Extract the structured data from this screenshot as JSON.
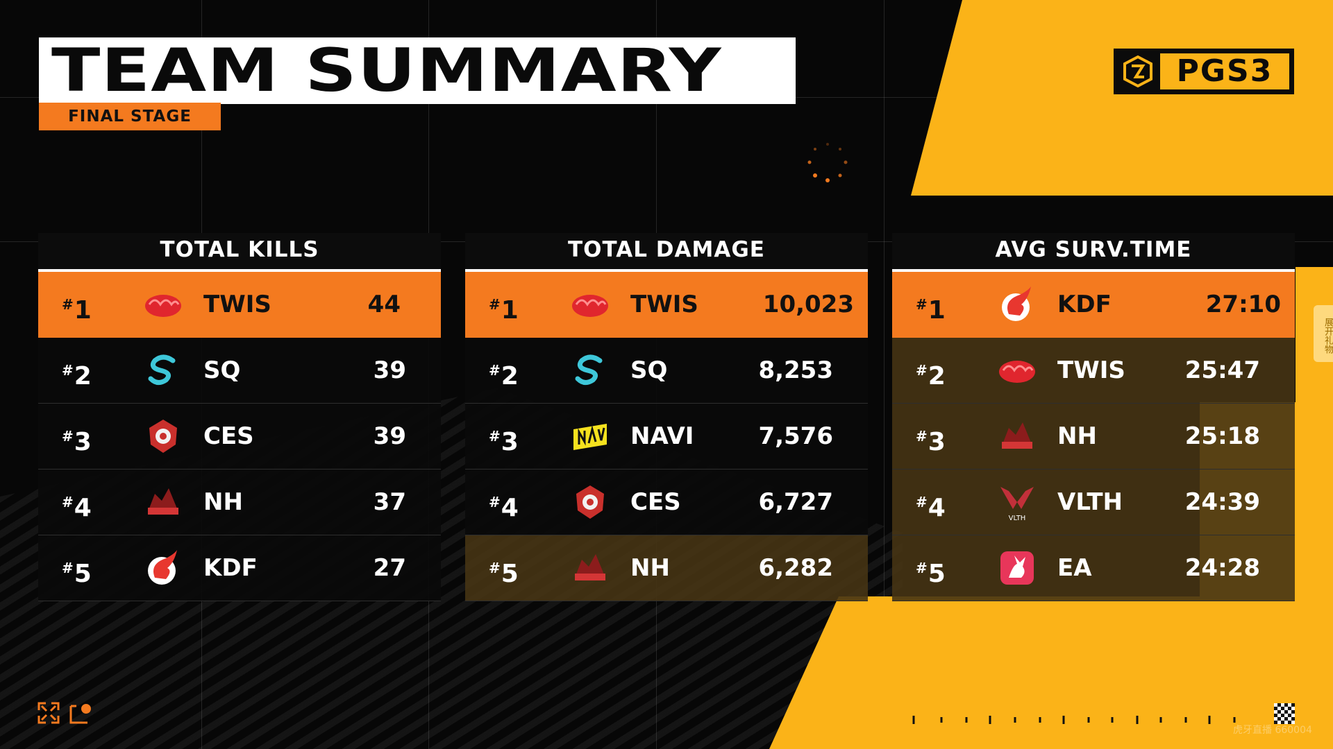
{
  "header": {
    "title": "TEAM SUMMARY",
    "subtitle": "FINAL STAGE",
    "logo_text": "PGS3"
  },
  "panels": [
    {
      "title": "TOTAL KILLS",
      "rows": [
        {
          "rank_hash": "#",
          "rank_num": "1",
          "team": "TWIS",
          "value": "44",
          "logo": "twis-logo"
        },
        {
          "rank_hash": "#",
          "rank_num": "2",
          "team": "SQ",
          "value": "39",
          "logo": "sq-logo"
        },
        {
          "rank_hash": "#",
          "rank_num": "3",
          "team": "CES",
          "value": "39",
          "logo": "ces-logo"
        },
        {
          "rank_hash": "#",
          "rank_num": "4",
          "team": "NH",
          "value": "37",
          "logo": "nh-logo"
        },
        {
          "rank_hash": "#",
          "rank_num": "5",
          "team": "KDF",
          "value": "27",
          "logo": "kdf-logo"
        }
      ]
    },
    {
      "title": "TOTAL DAMAGE",
      "rows": [
        {
          "rank_hash": "#",
          "rank_num": "1",
          "team": "TWIS",
          "value": "10,023",
          "logo": "twis-logo"
        },
        {
          "rank_hash": "#",
          "rank_num": "2",
          "team": "SQ",
          "value": "8,253",
          "logo": "sq-logo"
        },
        {
          "rank_hash": "#",
          "rank_num": "3",
          "team": "NAVI",
          "value": "7,576",
          "logo": "navi-logo"
        },
        {
          "rank_hash": "#",
          "rank_num": "4",
          "team": "CES",
          "value": "6,727",
          "logo": "ces-logo"
        },
        {
          "rank_hash": "#",
          "rank_num": "5",
          "team": "NH",
          "value": "6,282",
          "logo": "nh-logo"
        }
      ]
    },
    {
      "title": "AVG SURV.TIME",
      "rows": [
        {
          "rank_hash": "#",
          "rank_num": "1",
          "team": "KDF",
          "value": "27:10",
          "logo": "kdf-logo"
        },
        {
          "rank_hash": "#",
          "rank_num": "2",
          "team": "TWIS",
          "value": "25:47",
          "logo": "twis-logo"
        },
        {
          "rank_hash": "#",
          "rank_num": "3",
          "team": "NH",
          "value": "25:18",
          "logo": "nh-logo"
        },
        {
          "rank_hash": "#",
          "rank_num": "4",
          "team": "VLTH",
          "value": "24:39",
          "logo": "vlth-logo"
        },
        {
          "rank_hash": "#",
          "rank_num": "5",
          "team": "EA",
          "value": "24:28",
          "logo": "ea-logo"
        }
      ]
    }
  ],
  "vlth_logo_text": "VLTH",
  "side_tab": "展开礼物",
  "watermark": "虎牙直播 660004",
  "colors": {
    "accent_orange": "#f47a1f",
    "accent_yellow": "#fbb318",
    "background": "#070707"
  }
}
